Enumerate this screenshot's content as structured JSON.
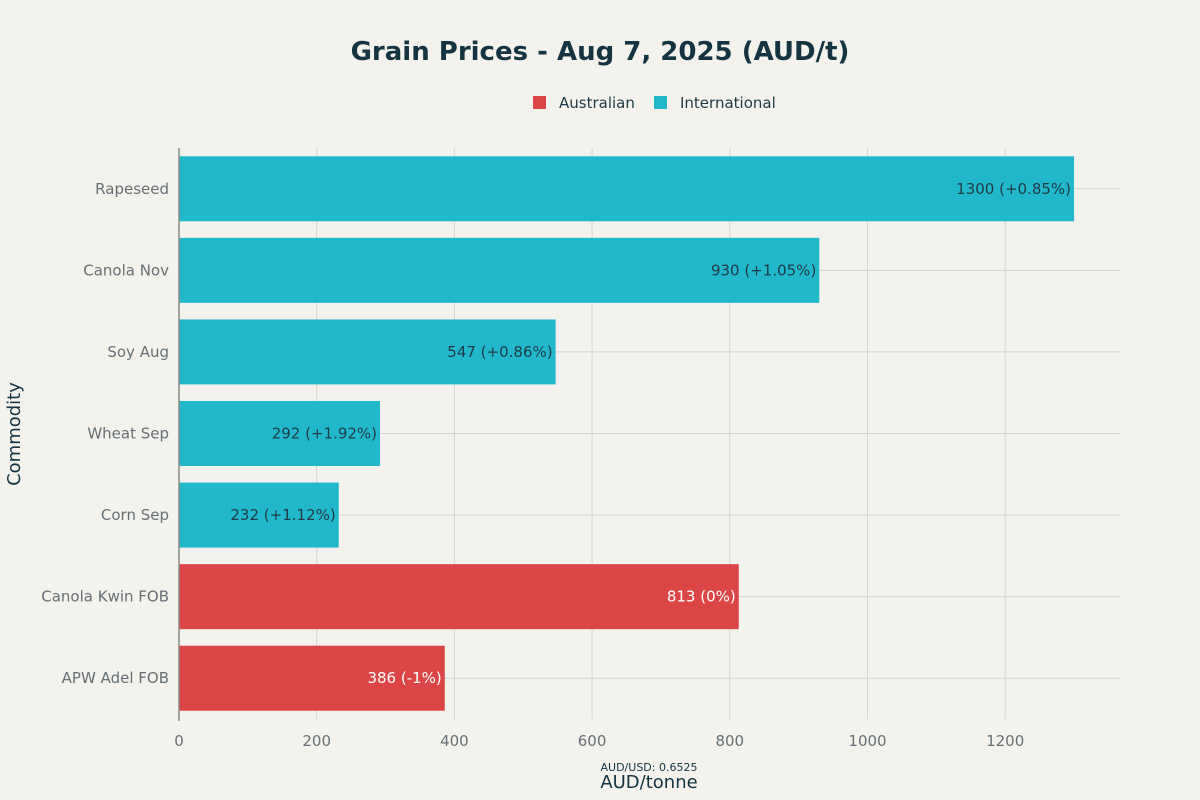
{
  "chart_data": {
    "type": "bar",
    "orientation": "horizontal",
    "title": "Grain Prices - Aug 7, 2025 (AUD/t)",
    "xlabel": "AUD/tonne",
    "ylabel": "Commodity",
    "note": "AUD/USD: 0.6525",
    "xlim": [
      0,
      1370
    ],
    "xticks": [
      0,
      200,
      400,
      600,
      800,
      1000,
      1200
    ],
    "grid": true,
    "legend_position": "top-center",
    "legend": [
      {
        "name": "Australian",
        "color": "#db4545"
      },
      {
        "name": "International",
        "color": "#22b8cc"
      }
    ],
    "categories": [
      "Rapeseed",
      "Canola Nov",
      "Soy Aug",
      "Wheat Sep",
      "Corn Sep",
      "Canola Kwin FOB",
      "APW Adel FOB"
    ],
    "values": [
      1300,
      930,
      547,
      292,
      232,
      813,
      386
    ],
    "group": [
      "International",
      "International",
      "International",
      "International",
      "International",
      "Australian",
      "Australian"
    ],
    "data_labels": [
      "1300 (+0.85%)",
      "930 (+1.05%)",
      "547 (+0.86%)",
      "292 (+1.92%)",
      "232 (+1.12%)",
      "813 (0%)",
      "386 (-1%)"
    ]
  }
}
